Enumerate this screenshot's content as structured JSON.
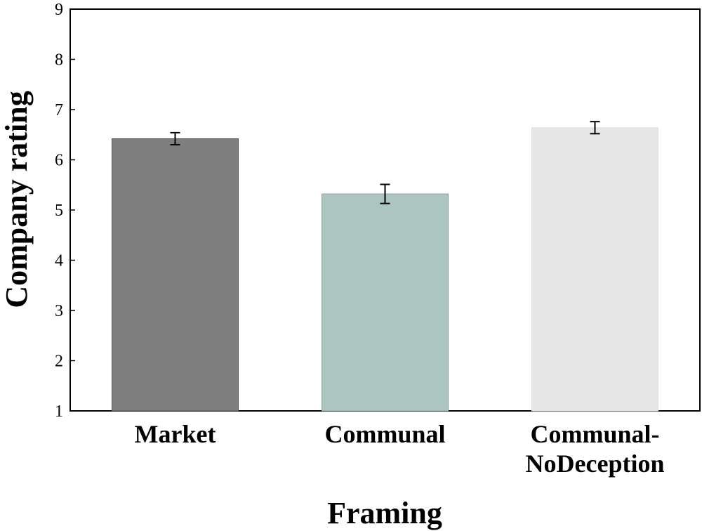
{
  "chart_data": {
    "type": "bar",
    "categories": [
      [
        "Market"
      ],
      [
        "Communal"
      ],
      [
        "Communal-",
        "NoDeception"
      ]
    ],
    "values": [
      6.42,
      5.32,
      6.64
    ],
    "errors": [
      0.12,
      0.19,
      0.12
    ],
    "colors": [
      "#7f7f7f",
      "#adc5c1",
      "#e6e6e6"
    ],
    "edge_colors": [
      "#555555",
      "#8aa6a1",
      "#e0e0e0"
    ],
    "title": "",
    "xlabel": "Framing",
    "ylabel": "Company rating",
    "ylim": [
      1,
      9
    ],
    "yticks": [
      1,
      2,
      3,
      4,
      5,
      6,
      7,
      8,
      9
    ],
    "grid": false,
    "legend": "none"
  }
}
